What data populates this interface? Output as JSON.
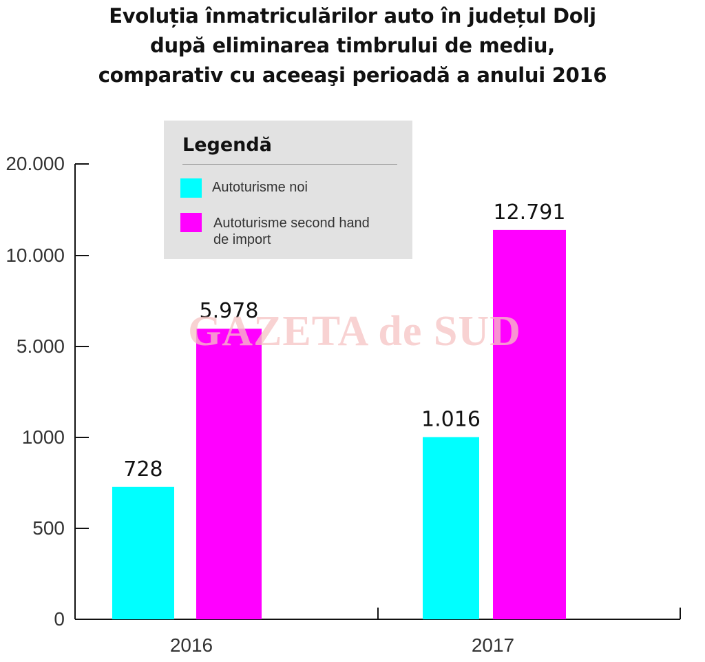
{
  "title": {
    "line1": "Evoluția înmatriculărilor auto în județul Dolj",
    "line2": "după eliminarea timbrului de mediu,",
    "line3": "comparativ cu aceeaşi perioadă a anului 2016"
  },
  "legend": {
    "heading": "Legendă",
    "items": [
      {
        "label": "Autoturisme noi",
        "color": "#00ffff"
      },
      {
        "label_line1": "Autoturisme second hand",
        "label_line2": "de import",
        "color": "#ff00ff"
      }
    ]
  },
  "watermark": "GAZETA de SUD",
  "chart_data": {
    "type": "bar",
    "categories": [
      "2016",
      "2017"
    ],
    "series": [
      {
        "name": "Autoturisme noi",
        "color": "#00ffff",
        "values": [
          728,
          1016
        ],
        "labels": [
          "728",
          "1.016"
        ]
      },
      {
        "name": "Autoturisme second hand de import",
        "color": "#ff00ff",
        "values": [
          5978,
          12791
        ],
        "labels": [
          "5.978",
          "12.791"
        ]
      }
    ],
    "y_scale": "piecewise (non-linear, as drawn)",
    "y_ticks": [
      0,
      500,
      1000,
      5000,
      10000,
      20000
    ],
    "y_tick_labels": [
      "0",
      "500",
      "1000",
      "5.000",
      "10.000",
      "20.000"
    ],
    "grid": false,
    "legend_position": "top-center"
  }
}
